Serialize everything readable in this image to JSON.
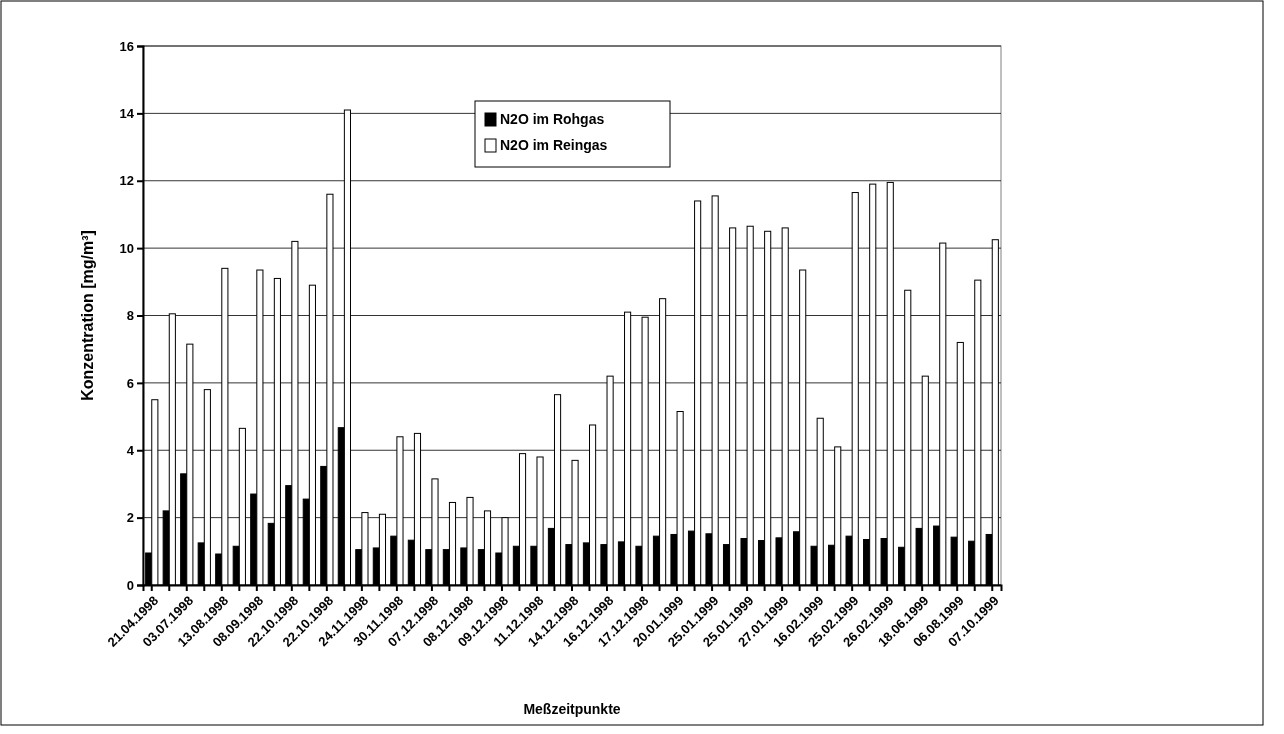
{
  "chart_data": {
    "type": "bar",
    "xlabel": "Meßzeitpunkte",
    "ylabel": "Konzentration [mg/m³]",
    "categories": [
      "21.04.1998",
      null,
      "03.07.1998",
      null,
      "13.08.1998",
      null,
      "08.09.1998",
      null,
      "22.10.1998",
      null,
      "22.10.1998",
      null,
      "24.11.1998",
      null,
      "30.11.1998",
      null,
      "07.12.1998",
      null,
      "08.12.1998",
      null,
      "09.12.1998",
      null,
      "11.12.1998",
      null,
      "14.12.1998",
      null,
      "16.12.1998",
      null,
      "17.12.1998",
      null,
      "20.01.1999",
      null,
      "25.01.1999",
      null,
      "25.01.1999",
      null,
      "27.01.1999",
      null,
      "16.02.1999",
      null,
      "25.02.1999",
      null,
      "26.02.1999",
      null,
      "18.06.1999",
      null,
      "06.08.1999",
      null,
      "07.10.1999"
    ],
    "series": [
      {
        "name": "N2O im Rohgas",
        "color": "#000000",
        "values": [
          0.95,
          2.2,
          3.3,
          1.25,
          0.92,
          1.15,
          2.7,
          1.83,
          2.95,
          2.55,
          3.52,
          4.67,
          1.05,
          1.1,
          1.45,
          1.33,
          1.05,
          1.05,
          1.1,
          1.05,
          0.95,
          1.15,
          1.15,
          1.68,
          1.2,
          1.25,
          1.2,
          1.28,
          1.15,
          1.45,
          1.5,
          1.6,
          1.52,
          1.2,
          1.38,
          1.32,
          1.4,
          1.58,
          1.15,
          1.18,
          1.45,
          1.35,
          1.38,
          1.12,
          1.68,
          1.75,
          1.42,
          1.3,
          1.5
        ]
      },
      {
        "name": "N2O im Reingas",
        "color": "#ffffff",
        "values": [
          5.5,
          8.05,
          7.15,
          5.8,
          9.4,
          4.65,
          9.35,
          9.1,
          10.2,
          8.9,
          11.6,
          14.1,
          2.15,
          2.1,
          4.4,
          4.5,
          3.15,
          2.45,
          2.6,
          2.2,
          2.0,
          3.9,
          3.8,
          5.65,
          3.7,
          4.75,
          6.2,
          8.1,
          7.95,
          8.5,
          5.15,
          11.4,
          11.55,
          10.6,
          10.65,
          10.5,
          10.6,
          9.35,
          4.95,
          4.1,
          11.65,
          11.9,
          11.95,
          8.75,
          6.2,
          10.15,
          7.2,
          9.05,
          10.25
        ]
      }
    ],
    "ylim": [
      0,
      16
    ],
    "yticks": [
      0,
      2,
      4,
      6,
      8,
      10,
      12,
      14,
      16
    ],
    "grid": "y",
    "legend": "top"
  }
}
